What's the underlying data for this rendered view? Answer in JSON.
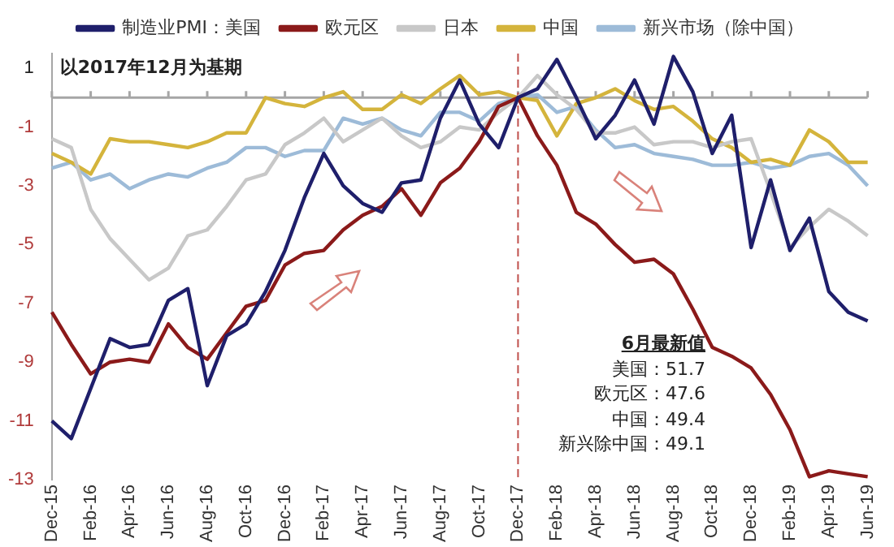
{
  "chart_data": {
    "type": "line",
    "categories": [
      "Dec-15",
      null,
      "Feb-16",
      null,
      "Apr-16",
      null,
      "Jun-16",
      null,
      "Aug-16",
      null,
      "Oct-16",
      null,
      "Dec-16",
      null,
      "Feb-17",
      null,
      "Apr-17",
      null,
      "Jun-17",
      null,
      "Aug-17",
      null,
      "Oct-17",
      null,
      "Dec-17",
      null,
      "Feb-18",
      null,
      "Apr-18",
      null,
      "Jun-18",
      null,
      "Aug-18",
      null,
      "Oct-18",
      null,
      "Dec-18",
      null,
      "Feb-19",
      null,
      "Apr-19",
      null,
      "Jun-19"
    ],
    "series": [
      {
        "name": "制造业PMI：美国",
        "color": "#1f1f6b",
        "values": [
          -11,
          -11.6,
          -9.9,
          -8.2,
          -8.5,
          -8.4,
          -6.9,
          -6.5,
          -9.8,
          -8.1,
          -7.7,
          -6.6,
          -5.2,
          -3.4,
          -1.9,
          -3,
          -3.6,
          -3.9,
          -2.9,
          -2.8,
          -0.7,
          0.6,
          -0.9,
          -1.7,
          0,
          0.3,
          1.3,
          0,
          -1.4,
          -0.6,
          0.6,
          -0.9,
          1.4,
          0.2,
          -1.9,
          -0.6,
          -5.1,
          -2.8,
          -5.2,
          -4.1,
          -6.6,
          -7.3,
          -7.6
        ]
      },
      {
        "name": "欧元区",
        "color": "#8b1a1a",
        "values": [
          -7.3,
          -8.4,
          -9.4,
          -9,
          -8.9,
          -9,
          -7.7,
          -8.5,
          -8.9,
          -8,
          -7.1,
          -6.9,
          -5.7,
          -5.3,
          -5.2,
          -4.5,
          -4,
          -3.7,
          -3.1,
          -4,
          -2.9,
          -2.4,
          -1.5,
          -0.3,
          0,
          -1.3,
          -2.3,
          -3.9,
          -4.3,
          -5,
          -5.6,
          -5.5,
          -6,
          -7.2,
          -8.5,
          -8.8,
          -9.2,
          -10.1,
          -11.3,
          -12.9,
          -12.7,
          -12.8,
          -12.9
        ]
      },
      {
        "name": "日本",
        "color": "#c8c8c8",
        "values": [
          -1.4,
          -1.7,
          -3.8,
          -4.8,
          -5.5,
          -6.2,
          -5.8,
          -4.7,
          -4.5,
          -3.7,
          -2.8,
          -2.6,
          -1.6,
          -1.2,
          -0.7,
          -1.5,
          -1.1,
          -0.7,
          -1.3,
          -1.7,
          -1.5,
          -1,
          -1.1,
          -0.5,
          0,
          0.75,
          0.1,
          -0.4,
          -1.2,
          -1.2,
          -1,
          -1.6,
          -1.5,
          -1.5,
          -1.7,
          -1.5,
          -1.4,
          -3.2,
          -5.1,
          -4.4,
          -3.8,
          -4.2,
          -4.7
        ]
      },
      {
        "name": "中国",
        "color": "#d4b43c",
        "values": [
          -1.9,
          -2.2,
          -2.6,
          -1.4,
          -1.5,
          -1.5,
          -1.6,
          -1.7,
          -1.5,
          -1.2,
          -1.2,
          0,
          -0.2,
          -0.3,
          0,
          0.2,
          -0.4,
          -0.4,
          0.1,
          -0.2,
          0.3,
          0.75,
          0.1,
          0.2,
          0,
          -0.1,
          -1.3,
          -0.2,
          0,
          0.3,
          -0.1,
          -0.4,
          -0.3,
          -0.8,
          -1.4,
          -1.7,
          -2.2,
          -2.1,
          -2.3,
          -1.1,
          -1.5,
          -2.2,
          -2.2
        ]
      },
      {
        "name": "新兴市场（除中国）",
        "color": "#9dbbd8",
        "values": [
          -2.4,
          -2.2,
          -2.8,
          -2.6,
          -3.1,
          -2.8,
          -2.6,
          -2.7,
          -2.4,
          -2.2,
          -1.7,
          -1.7,
          -2,
          -1.8,
          -1.8,
          -0.7,
          -0.9,
          -0.7,
          -1.1,
          -1.3,
          -0.5,
          -0.5,
          -0.8,
          -0.2,
          0,
          0.1,
          -0.5,
          -0.3,
          -1.1,
          -1.7,
          -1.6,
          -1.9,
          -2,
          -2.1,
          -2.3,
          -2.3,
          -2.2,
          -2.4,
          -2.3,
          -2,
          -1.9,
          -2.3,
          -3
        ]
      }
    ],
    "ylim": [
      -13,
      1.5
    ],
    "yticks": [
      1,
      -1,
      -3,
      -5,
      -7,
      -9,
      -11,
      -13
    ],
    "ref_lines": [
      {
        "axis": "y",
        "value": 0,
        "color": "#a6a6a6",
        "line_style": "solid"
      },
      {
        "axis": "x",
        "value": "Dec-17",
        "color": "#c0504d",
        "line_style": "dashed"
      }
    ],
    "annotations": [
      "以2017年12月为基期",
      "6月最新值",
      "美国：51.7",
      "欧元区：47.6",
      "中国：49.4",
      "新兴除中国：49.1"
    ],
    "legend": "top",
    "grid": false,
    "marker": "none",
    "line_style": "solid"
  }
}
